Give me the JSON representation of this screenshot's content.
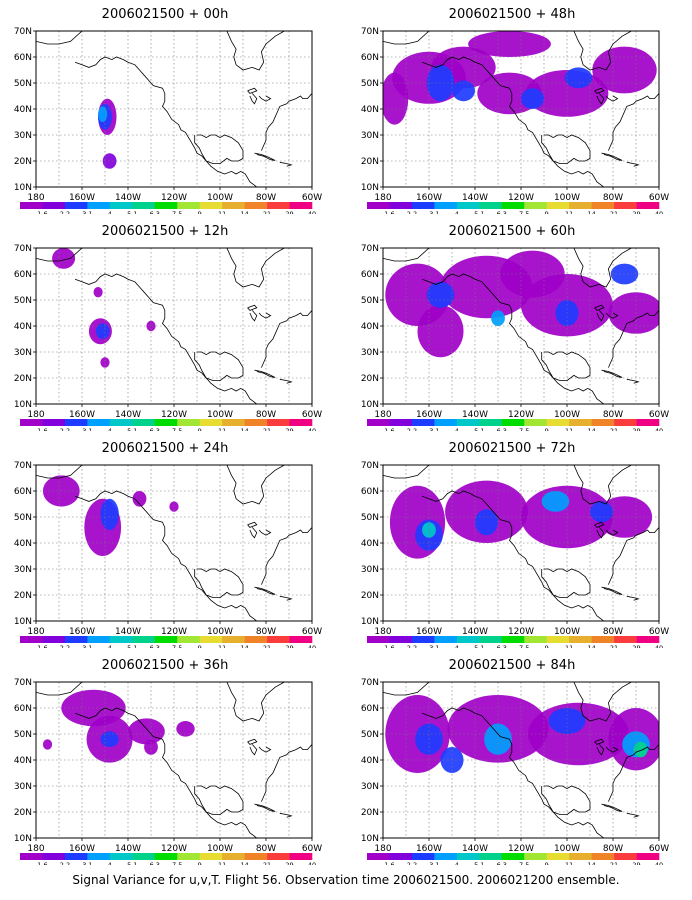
{
  "figure": {
    "caption": "Signal Variance for u,v,T. Flight 56. Observation time 2006021500. 2006021200 ensemble."
  },
  "axes": {
    "lat_ticks": [
      "70N",
      "60N",
      "50N",
      "40N",
      "30N",
      "20N",
      "10N"
    ],
    "lon_ticks": [
      "180",
      "160W",
      "140W",
      "120W",
      "100W",
      "80W",
      "60W"
    ]
  },
  "colorbar": {
    "labels": [
      "1.6",
      "2.2",
      "3.1",
      "4",
      "5.1",
      "6.3",
      "7.5",
      "9",
      "11",
      "14",
      "21",
      "29",
      "40"
    ],
    "colors": [
      "#a000c8",
      "#8200dc",
      "#1e3cff",
      "#00a0ff",
      "#00c8c8",
      "#00d28c",
      "#00dc00",
      "#a0e632",
      "#e6dc32",
      "#e6af2d",
      "#f08228",
      "#fa3c3c",
      "#f00082"
    ]
  },
  "panels": [
    {
      "title": "2006021500 + 00h"
    },
    {
      "title": "2006021500 + 48h"
    },
    {
      "title": "2006021500 + 12h"
    },
    {
      "title": "2006021500 + 60h"
    },
    {
      "title": "2006021500 + 24h"
    },
    {
      "title": "2006021500 + 72h"
    },
    {
      "title": "2006021500 + 36h"
    },
    {
      "title": "2006021500 + 84h"
    }
  ],
  "map": {
    "lon_range": [
      180,
      300
    ],
    "lat_range": [
      10,
      70
    ],
    "grid": true,
    "projection": "lat-lon",
    "colors": {
      "coast": "#000000",
      "grid": "#777777"
    }
  }
}
